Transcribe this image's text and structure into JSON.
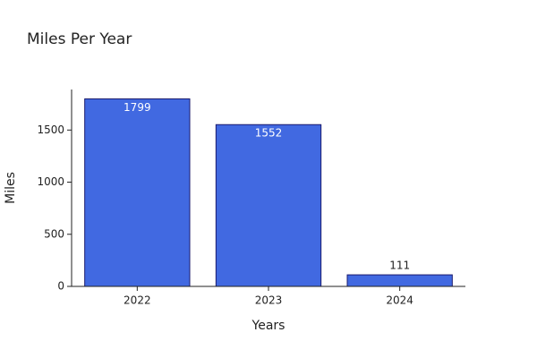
{
  "chart_data": {
    "type": "bar",
    "title": "Miles Per Year",
    "x_label": "Years",
    "y_label": "Miles",
    "categories": [
      "2022",
      "2023",
      "2024"
    ],
    "values": [
      1799,
      1552,
      111
    ],
    "color": "#4169e1",
    "edge_color": "#1a1a6e",
    "ylim": [
      0,
      1889
    ],
    "yticks": [
      0,
      500,
      1000,
      1500
    ],
    "grid": false
  }
}
